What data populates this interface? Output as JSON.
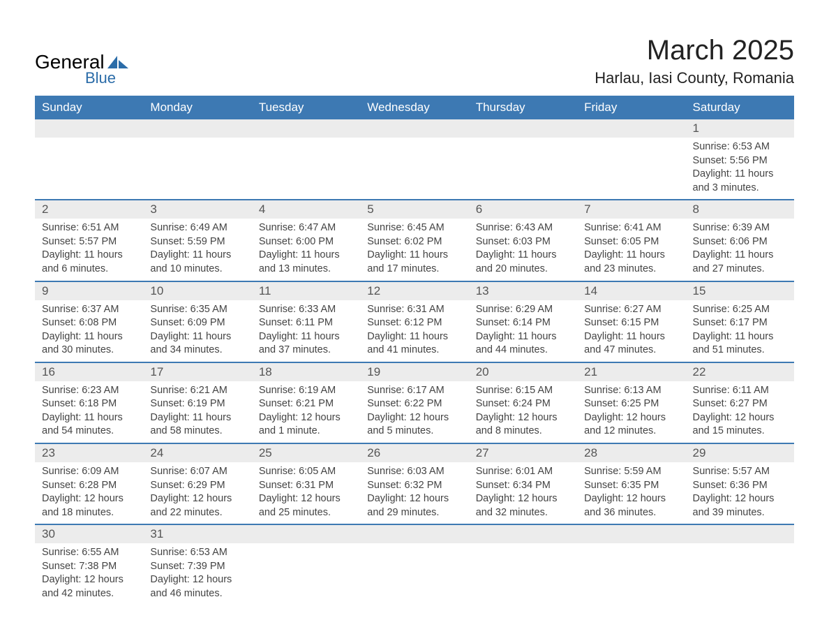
{
  "logo": {
    "text1": "General",
    "text2": "Blue"
  },
  "title": "March 2025",
  "subtitle": "Harlau, Iasi County, Romania",
  "colors": {
    "header_bg": "#3d79b3",
    "header_text": "#ffffff",
    "daynum_bg": "#ececec",
    "daynum_text": "#555555",
    "body_text": "#444444",
    "row_divider": "#3d79b3",
    "logo_blue": "#2b6ca8",
    "background": "#ffffff"
  },
  "typography": {
    "title_fontsize": 40,
    "subtitle_fontsize": 22,
    "header_fontsize": 17,
    "daynum_fontsize": 17,
    "body_fontsize": 14.5,
    "logo_general_fontsize": 28,
    "logo_blue_fontsize": 22,
    "font_family": "Arial"
  },
  "day_headers": [
    "Sunday",
    "Monday",
    "Tuesday",
    "Wednesday",
    "Thursday",
    "Friday",
    "Saturday"
  ],
  "weeks": [
    [
      {
        "blank": true
      },
      {
        "blank": true
      },
      {
        "blank": true
      },
      {
        "blank": true
      },
      {
        "blank": true
      },
      {
        "blank": true
      },
      {
        "day": "1",
        "sunrise": "Sunrise: 6:53 AM",
        "sunset": "Sunset: 5:56 PM",
        "daylight1": "Daylight: 11 hours",
        "daylight2": "and 3 minutes."
      }
    ],
    [
      {
        "day": "2",
        "sunrise": "Sunrise: 6:51 AM",
        "sunset": "Sunset: 5:57 PM",
        "daylight1": "Daylight: 11 hours",
        "daylight2": "and 6 minutes."
      },
      {
        "day": "3",
        "sunrise": "Sunrise: 6:49 AM",
        "sunset": "Sunset: 5:59 PM",
        "daylight1": "Daylight: 11 hours",
        "daylight2": "and 10 minutes."
      },
      {
        "day": "4",
        "sunrise": "Sunrise: 6:47 AM",
        "sunset": "Sunset: 6:00 PM",
        "daylight1": "Daylight: 11 hours",
        "daylight2": "and 13 minutes."
      },
      {
        "day": "5",
        "sunrise": "Sunrise: 6:45 AM",
        "sunset": "Sunset: 6:02 PM",
        "daylight1": "Daylight: 11 hours",
        "daylight2": "and 17 minutes."
      },
      {
        "day": "6",
        "sunrise": "Sunrise: 6:43 AM",
        "sunset": "Sunset: 6:03 PM",
        "daylight1": "Daylight: 11 hours",
        "daylight2": "and 20 minutes."
      },
      {
        "day": "7",
        "sunrise": "Sunrise: 6:41 AM",
        "sunset": "Sunset: 6:05 PM",
        "daylight1": "Daylight: 11 hours",
        "daylight2": "and 23 minutes."
      },
      {
        "day": "8",
        "sunrise": "Sunrise: 6:39 AM",
        "sunset": "Sunset: 6:06 PM",
        "daylight1": "Daylight: 11 hours",
        "daylight2": "and 27 minutes."
      }
    ],
    [
      {
        "day": "9",
        "sunrise": "Sunrise: 6:37 AM",
        "sunset": "Sunset: 6:08 PM",
        "daylight1": "Daylight: 11 hours",
        "daylight2": "and 30 minutes."
      },
      {
        "day": "10",
        "sunrise": "Sunrise: 6:35 AM",
        "sunset": "Sunset: 6:09 PM",
        "daylight1": "Daylight: 11 hours",
        "daylight2": "and 34 minutes."
      },
      {
        "day": "11",
        "sunrise": "Sunrise: 6:33 AM",
        "sunset": "Sunset: 6:11 PM",
        "daylight1": "Daylight: 11 hours",
        "daylight2": "and 37 minutes."
      },
      {
        "day": "12",
        "sunrise": "Sunrise: 6:31 AM",
        "sunset": "Sunset: 6:12 PM",
        "daylight1": "Daylight: 11 hours",
        "daylight2": "and 41 minutes."
      },
      {
        "day": "13",
        "sunrise": "Sunrise: 6:29 AM",
        "sunset": "Sunset: 6:14 PM",
        "daylight1": "Daylight: 11 hours",
        "daylight2": "and 44 minutes."
      },
      {
        "day": "14",
        "sunrise": "Sunrise: 6:27 AM",
        "sunset": "Sunset: 6:15 PM",
        "daylight1": "Daylight: 11 hours",
        "daylight2": "and 47 minutes."
      },
      {
        "day": "15",
        "sunrise": "Sunrise: 6:25 AM",
        "sunset": "Sunset: 6:17 PM",
        "daylight1": "Daylight: 11 hours",
        "daylight2": "and 51 minutes."
      }
    ],
    [
      {
        "day": "16",
        "sunrise": "Sunrise: 6:23 AM",
        "sunset": "Sunset: 6:18 PM",
        "daylight1": "Daylight: 11 hours",
        "daylight2": "and 54 minutes."
      },
      {
        "day": "17",
        "sunrise": "Sunrise: 6:21 AM",
        "sunset": "Sunset: 6:19 PM",
        "daylight1": "Daylight: 11 hours",
        "daylight2": "and 58 minutes."
      },
      {
        "day": "18",
        "sunrise": "Sunrise: 6:19 AM",
        "sunset": "Sunset: 6:21 PM",
        "daylight1": "Daylight: 12 hours",
        "daylight2": "and 1 minute."
      },
      {
        "day": "19",
        "sunrise": "Sunrise: 6:17 AM",
        "sunset": "Sunset: 6:22 PM",
        "daylight1": "Daylight: 12 hours",
        "daylight2": "and 5 minutes."
      },
      {
        "day": "20",
        "sunrise": "Sunrise: 6:15 AM",
        "sunset": "Sunset: 6:24 PM",
        "daylight1": "Daylight: 12 hours",
        "daylight2": "and 8 minutes."
      },
      {
        "day": "21",
        "sunrise": "Sunrise: 6:13 AM",
        "sunset": "Sunset: 6:25 PM",
        "daylight1": "Daylight: 12 hours",
        "daylight2": "and 12 minutes."
      },
      {
        "day": "22",
        "sunrise": "Sunrise: 6:11 AM",
        "sunset": "Sunset: 6:27 PM",
        "daylight1": "Daylight: 12 hours",
        "daylight2": "and 15 minutes."
      }
    ],
    [
      {
        "day": "23",
        "sunrise": "Sunrise: 6:09 AM",
        "sunset": "Sunset: 6:28 PM",
        "daylight1": "Daylight: 12 hours",
        "daylight2": "and 18 minutes."
      },
      {
        "day": "24",
        "sunrise": "Sunrise: 6:07 AM",
        "sunset": "Sunset: 6:29 PM",
        "daylight1": "Daylight: 12 hours",
        "daylight2": "and 22 minutes."
      },
      {
        "day": "25",
        "sunrise": "Sunrise: 6:05 AM",
        "sunset": "Sunset: 6:31 PM",
        "daylight1": "Daylight: 12 hours",
        "daylight2": "and 25 minutes."
      },
      {
        "day": "26",
        "sunrise": "Sunrise: 6:03 AM",
        "sunset": "Sunset: 6:32 PM",
        "daylight1": "Daylight: 12 hours",
        "daylight2": "and 29 minutes."
      },
      {
        "day": "27",
        "sunrise": "Sunrise: 6:01 AM",
        "sunset": "Sunset: 6:34 PM",
        "daylight1": "Daylight: 12 hours",
        "daylight2": "and 32 minutes."
      },
      {
        "day": "28",
        "sunrise": "Sunrise: 5:59 AM",
        "sunset": "Sunset: 6:35 PM",
        "daylight1": "Daylight: 12 hours",
        "daylight2": "and 36 minutes."
      },
      {
        "day": "29",
        "sunrise": "Sunrise: 5:57 AM",
        "sunset": "Sunset: 6:36 PM",
        "daylight1": "Daylight: 12 hours",
        "daylight2": "and 39 minutes."
      }
    ],
    [
      {
        "day": "30",
        "sunrise": "Sunrise: 6:55 AM",
        "sunset": "Sunset: 7:38 PM",
        "daylight1": "Daylight: 12 hours",
        "daylight2": "and 42 minutes."
      },
      {
        "day": "31",
        "sunrise": "Sunrise: 6:53 AM",
        "sunset": "Sunset: 7:39 PM",
        "daylight1": "Daylight: 12 hours",
        "daylight2": "and 46 minutes."
      },
      {
        "blank": true
      },
      {
        "blank": true
      },
      {
        "blank": true
      },
      {
        "blank": true
      },
      {
        "blank": true
      }
    ]
  ]
}
